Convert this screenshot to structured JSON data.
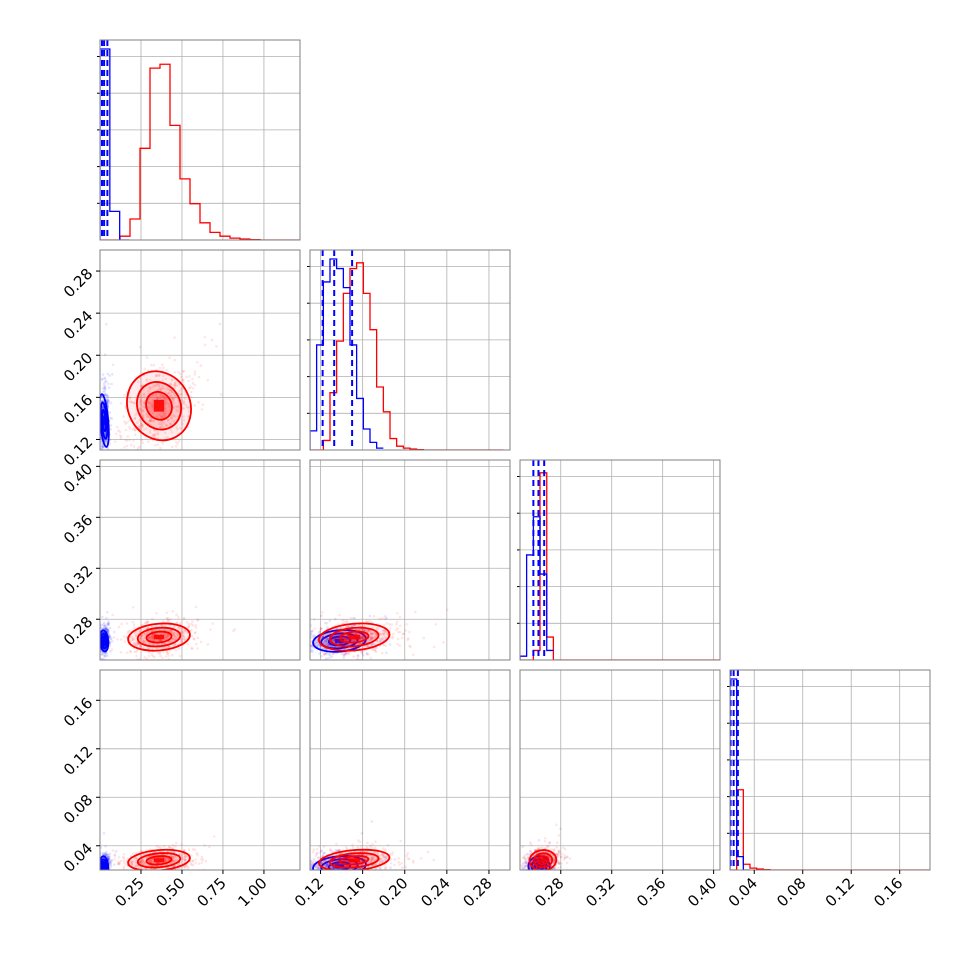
{
  "chart_data": {
    "type": "corner",
    "title": "",
    "parameters": 4,
    "grid": true,
    "colors": {
      "blue": "#0000ff",
      "red": "#ff0000"
    },
    "axes": [
      {
        "index": 0,
        "range": [
          0.0,
          1.22
        ],
        "ticks": [
          0.25,
          0.5,
          0.75,
          1.0
        ],
        "tick_labels": [
          "0.25",
          "0.50",
          "0.75",
          "1.00"
        ]
      },
      {
        "index": 1,
        "range": [
          0.11,
          0.3
        ],
        "ticks": [
          0.12,
          0.16,
          0.2,
          0.24,
          0.28
        ],
        "tick_labels": [
          "0.12",
          "0.16",
          "0.20",
          "0.24",
          "0.28"
        ]
      },
      {
        "index": 2,
        "range": [
          0.248,
          0.405
        ],
        "ticks": [
          0.28,
          0.32,
          0.36,
          0.4
        ],
        "tick_labels": [
          "0.28",
          "0.32",
          "0.36",
          "0.40"
        ]
      },
      {
        "index": 3,
        "range": [
          0.02,
          0.185
        ],
        "ticks": [
          0.04,
          0.08,
          0.12,
          0.16
        ],
        "tick_labels": [
          "0.04",
          "0.08",
          "0.12",
          "0.16"
        ]
      }
    ],
    "series": [
      {
        "color": "blue",
        "centers": [
          0.025,
          0.138,
          0.263,
          0.023
        ],
        "sigmas": [
          0.012,
          0.012,
          0.004,
          0.004
        ],
        "quantiles": [
          [
            0.012,
            0.025,
            0.045
          ],
          [
            0.122,
            0.133,
            0.15
          ],
          [
            0.2585,
            0.2625,
            0.267
          ],
          [
            0.0205,
            0.023,
            0.0265
          ]
        ],
        "histograms": [
          {
            "edges": [
              0.0,
              0.06,
              0.12,
              0.18
            ],
            "heights": [
              1.0,
              0.15,
              0.0
            ]
          },
          {
            "edges": [
              0.11,
              0.1163,
              0.1227,
              0.129,
              0.1353,
              0.1417,
              0.148,
              0.1543,
              0.1607,
              0.167,
              0.1733,
              0.1797
            ],
            "heights": [
              0.1,
              0.55,
              0.88,
              1.0,
              0.95,
              0.85,
              0.55,
              0.27,
              0.11,
              0.04,
              0.01
            ]
          },
          {
            "edges": [
              0.248,
              0.2532,
              0.2585,
              0.2637,
              0.269,
              0.2742
            ],
            "heights": [
              0.02,
              0.55,
              0.75,
              0.45,
              0.05
            ]
          },
          {
            "edges": [
              0.02,
              0.0255,
              0.031,
              0.0365
            ],
            "heights": [
              1.0,
              0.07,
              0.0
            ]
          }
        ]
      },
      {
        "color": "red",
        "centers": [
          0.36,
          0.152,
          0.266,
          0.028
        ],
        "sigmas": [
          0.09,
          0.016,
          0.005,
          0.004
        ],
        "quantiles": [],
        "histograms": [
          {
            "edges": [
              0.0,
              0.061,
              0.122,
              0.183,
              0.244,
              0.305,
              0.366,
              0.427,
              0.488,
              0.549,
              0.61,
              0.671,
              0.732,
              0.793,
              0.854,
              0.915,
              0.976,
              1.037,
              1.098,
              1.159,
              1.22
            ],
            "heights": [
              0.0,
              0.0,
              0.02,
              0.11,
              0.48,
              0.9,
              0.92,
              0.6,
              0.32,
              0.19,
              0.09,
              0.04,
              0.02,
              0.01,
              0.005,
              0.002,
              0.0,
              0.0,
              0.0,
              0.0
            ]
          },
          {
            "edges": [
              0.11,
              0.1163,
              0.1227,
              0.129,
              0.1353,
              0.1417,
              0.148,
              0.1543,
              0.1607,
              0.167,
              0.1733,
              0.1797,
              0.186,
              0.1923,
              0.1987,
              0.205,
              0.2113,
              0.2177,
              0.224,
              0.2303,
              0.2367,
              0.243,
              0.2493,
              0.2557,
              0.262,
              0.2683,
              0.2747,
              0.281,
              0.2873,
              0.2937
            ],
            "heights": [
              0.0,
              0.0,
              0.05,
              0.3,
              0.57,
              0.82,
              0.95,
              0.98,
              0.82,
              0.63,
              0.33,
              0.2,
              0.06,
              0.02,
              0.01,
              0.005,
              0.002,
              0.0,
              0.0,
              0.0,
              0.0,
              0.0,
              0.0,
              0.0,
              0.0,
              0.0,
              0.0,
              0.0,
              0.0
            ]
          },
          {
            "edges": [
              0.248,
              0.2532,
              0.2585,
              0.2637,
              0.269,
              0.2742,
              0.2794,
              0.405
            ],
            "heights": [
              0.0,
              0.0,
              0.05,
              0.98,
              0.12,
              0.0,
              0.0
            ]
          },
          {
            "edges": [
              0.02,
              0.0255,
              0.031,
              0.0365,
              0.042,
              0.0475,
              0.053,
              0.185
            ],
            "heights": [
              0.0,
              0.42,
              0.03,
              0.01,
              0.005,
              0.002,
              0.0
            ]
          }
        ]
      }
    ]
  }
}
